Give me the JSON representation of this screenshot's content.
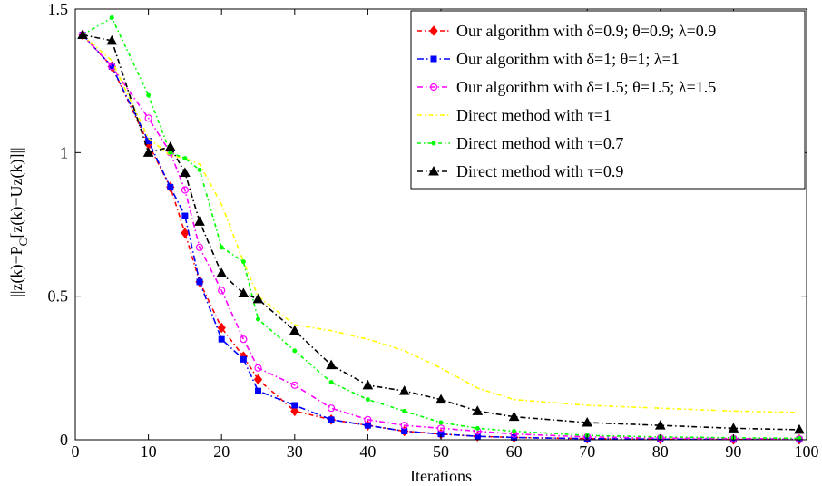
{
  "chart_data": {
    "type": "line",
    "xlabel": "Iterations",
    "ylabel": "||z(k)−P",
    "ylabel_sub": "C",
    "ylabel_rest": "[z(k)−Uz(k)]||",
    "xlim": [
      0,
      100
    ],
    "ylim": [
      0,
      1.5
    ],
    "x_ticks": [
      "0",
      "10",
      "20",
      "30",
      "40",
      "50",
      "60",
      "70",
      "80",
      "90",
      "100"
    ],
    "y_ticks": [
      "0",
      "0.5",
      "1",
      "1.5"
    ],
    "grid": false,
    "legend_position": "top-right",
    "x": [
      1,
      5,
      10,
      13,
      15,
      17,
      20,
      23,
      25,
      30,
      35,
      40,
      45,
      50,
      55,
      60,
      70,
      80,
      90,
      99
    ],
    "series": [
      {
        "name": "Our algorithm with δ=0.9; θ=0.9; λ=0.9",
        "color": "#ff0000",
        "dash": "5,3,1.5,3",
        "marker": "diamond",
        "values": [
          1.41,
          1.3,
          1.03,
          0.88,
          0.72,
          0.55,
          0.39,
          0.29,
          0.21,
          0.1,
          0.07,
          0.05,
          0.03,
          0.02,
          0.012,
          0.008,
          0.004,
          0.002,
          0.001,
          0.001
        ]
      },
      {
        "name": "Our algorithm with δ=1; θ=1; λ=1",
        "color": "#0000ff",
        "dash": "7,3,1.5,3",
        "marker": "square",
        "values": [
          1.41,
          1.3,
          1.04,
          0.88,
          0.78,
          0.55,
          0.35,
          0.28,
          0.17,
          0.12,
          0.07,
          0.05,
          0.03,
          0.02,
          0.012,
          0.008,
          0.004,
          0.002,
          0.001,
          0.001
        ]
      },
      {
        "name": "Our algorithm with δ=1.5; θ=1.5; λ=1.5",
        "color": "#ff00ff",
        "dash": "6,3,1.5,3",
        "marker": "circle",
        "values": [
          1.41,
          1.3,
          1.12,
          1.0,
          0.87,
          0.67,
          0.52,
          0.35,
          0.25,
          0.19,
          0.11,
          0.07,
          0.05,
          0.04,
          0.03,
          0.02,
          0.01,
          0.006,
          0.004,
          0.003
        ]
      },
      {
        "name": "Direct method with τ=1",
        "color": "#ffff00",
        "dash": "5,3,1.5,3",
        "marker": "none",
        "values": [
          1.41,
          1.32,
          1.05,
          0.99,
          0.98,
          0.96,
          0.82,
          0.62,
          0.5,
          0.4,
          0.38,
          0.35,
          0.31,
          0.25,
          0.18,
          0.14,
          0.12,
          0.11,
          0.1,
          0.095
        ]
      },
      {
        "name": "Direct method with τ=0.7",
        "color": "#00ff00",
        "dash": "4,3,1.5,3",
        "marker": "dot",
        "values": [
          1.41,
          1.47,
          1.2,
          1.0,
          0.98,
          0.94,
          0.67,
          0.62,
          0.42,
          0.31,
          0.2,
          0.14,
          0.1,
          0.06,
          0.04,
          0.03,
          0.015,
          0.01,
          0.007,
          0.005
        ]
      },
      {
        "name": "Direct method with τ=0.9",
        "color": "#000000",
        "dash": "6,3,1.5,3",
        "marker": "triangle",
        "values": [
          1.41,
          1.39,
          1.0,
          1.02,
          0.93,
          0.76,
          0.58,
          0.51,
          0.49,
          0.38,
          0.26,
          0.19,
          0.17,
          0.14,
          0.1,
          0.08,
          0.06,
          0.05,
          0.04,
          0.035
        ]
      }
    ]
  }
}
